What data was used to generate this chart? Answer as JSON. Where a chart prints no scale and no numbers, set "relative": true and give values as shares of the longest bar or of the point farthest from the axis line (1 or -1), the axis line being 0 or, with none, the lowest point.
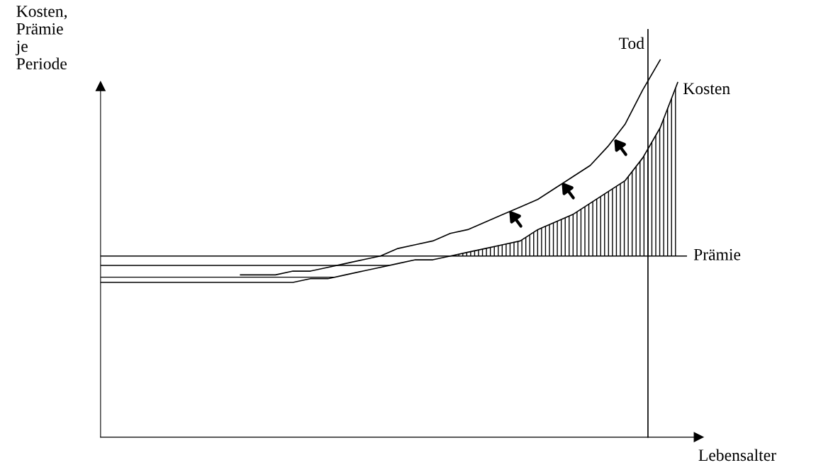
{
  "chart_data": {
    "type": "line",
    "relative": true,
    "xlabel": "Lebensalter",
    "ylabel": "Kosten,\nPrämie\nje\nPeriode",
    "categories": [
      null,
      null,
      null,
      null,
      null,
      null,
      null,
      null,
      null,
      null,
      null,
      null,
      null,
      null,
      null,
      null,
      null,
      null,
      null,
      null,
      null,
      null,
      null,
      null,
      null,
      null,
      null,
      null,
      null,
      null,
      null,
      null,
      null,
      null
    ],
    "series": [
      {
        "name": "Kosten",
        "color": "#000000",
        "values": [
          0.41,
          0.41,
          0.41,
          0.41,
          0.41,
          0.41,
          0.41,
          0.41,
          0.41,
          0.41,
          0.41,
          0.41,
          0.42,
          0.42,
          0.43,
          0.44,
          0.45,
          0.46,
          0.47,
          0.47,
          0.48,
          0.49,
          0.5,
          0.51,
          0.52,
          0.55,
          0.57,
          0.59,
          0.62,
          0.65,
          0.68,
          0.74,
          0.82,
          0.94
        ]
      },
      {
        "color": "#000000",
        "values": [
          null,
          null,
          null,
          null,
          null,
          null,
          null,
          null,
          0.43,
          0.43,
          0.43,
          0.44,
          0.44,
          0.45,
          0.46,
          0.47,
          0.48,
          0.5,
          0.51,
          0.52,
          0.54,
          0.55,
          0.57,
          0.59,
          0.61,
          0.63,
          0.66,
          0.69,
          0.72,
          0.77,
          0.83,
          0.92,
          1.0,
          null
        ]
      }
    ],
    "ref_lines": [
      {
        "axis": "y",
        "value": 0.48,
        "label": "Prämie",
        "color": "#000000"
      }
    ],
    "annotations": [
      "Tod"
    ],
    "legend": false,
    "grid": false,
    "marker": "none",
    "line_style": "solid"
  }
}
